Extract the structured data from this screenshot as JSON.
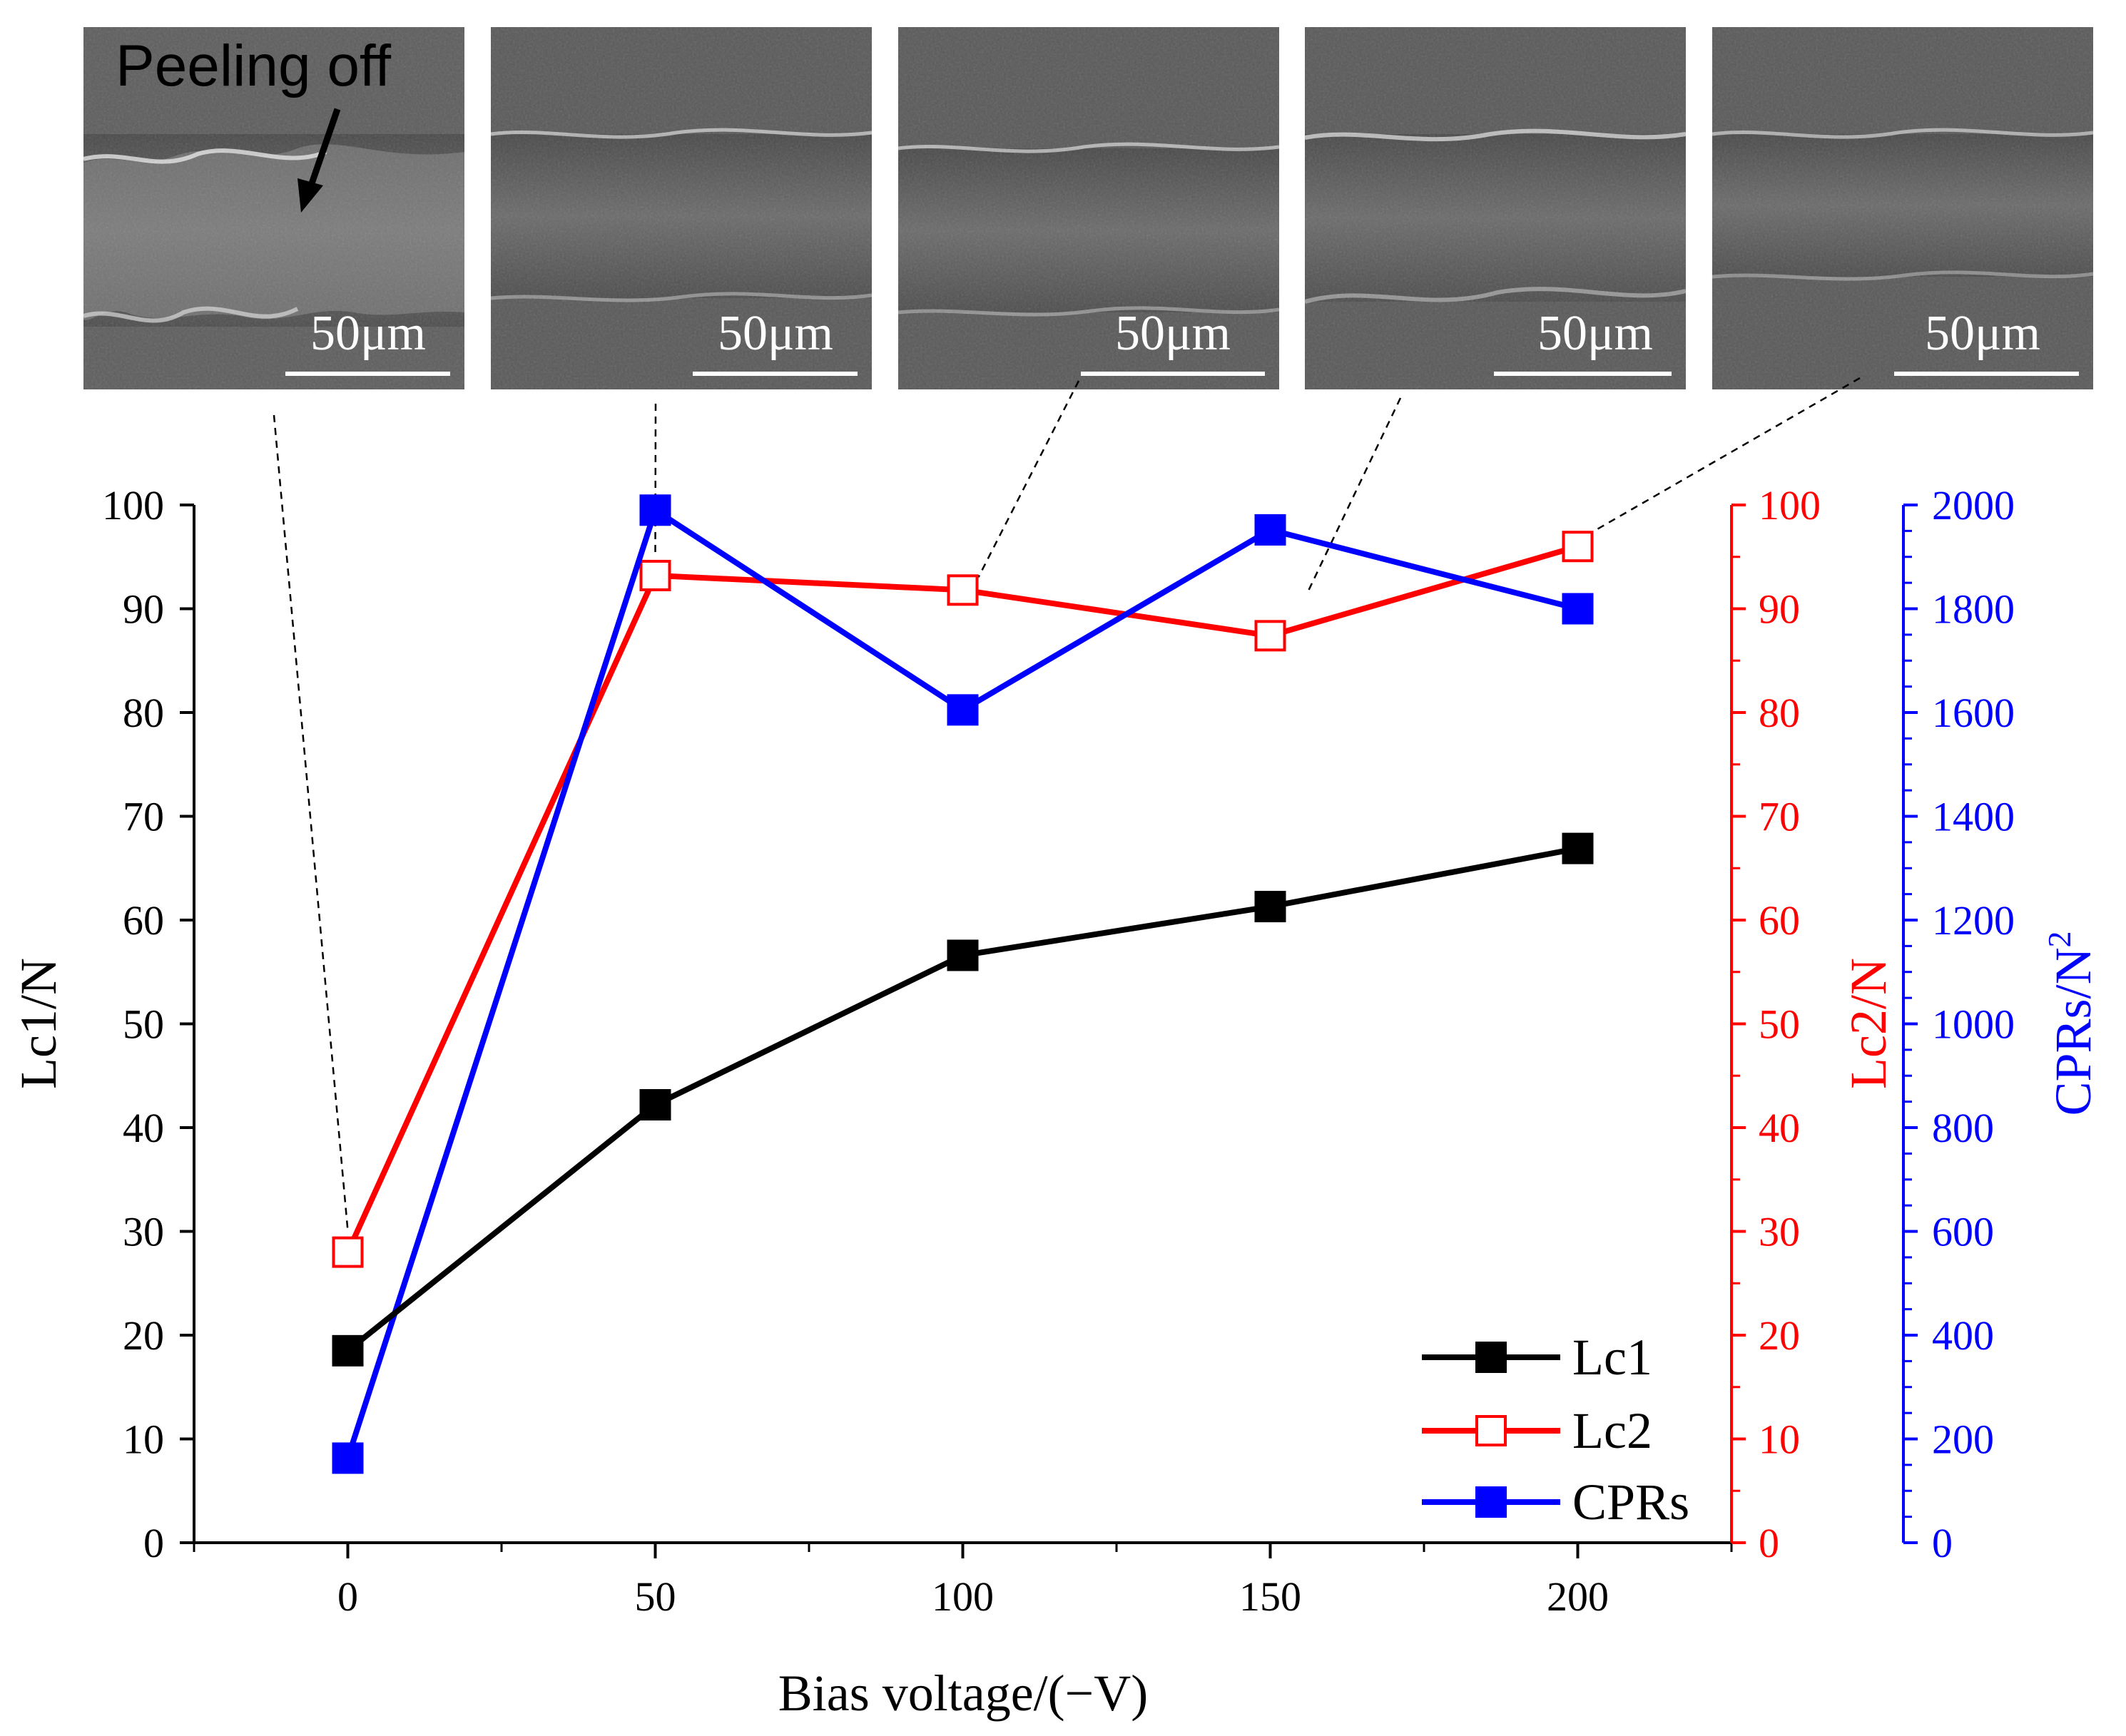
{
  "chart_data": {
    "type": "line",
    "title": "",
    "xlabel": "Bias voltage/(−V)",
    "ylabel_left": "Lc1/N",
    "ylabel_right": "Lc2/N",
    "ylabel_right2": "CPRs/N",
    "ylabel_right2_exponent": "2",
    "x": [
      0,
      50,
      100,
      150,
      200
    ],
    "x_ticks": [
      "0",
      "50",
      "100",
      "150",
      "200"
    ],
    "xlim": [
      -25,
      225
    ],
    "ylim_left": [
      0,
      100
    ],
    "ylim_right": [
      0,
      100
    ],
    "ylim_right2": [
      0,
      2000
    ],
    "yticks_left": [
      "0",
      "10",
      "20",
      "30",
      "40",
      "50",
      "60",
      "70",
      "80",
      "90",
      "100"
    ],
    "yticks_right": [
      "0",
      "10",
      "20",
      "30",
      "40",
      "50",
      "60",
      "70",
      "80",
      "90",
      "100"
    ],
    "yticks_right2": [
      "0",
      "200",
      "400",
      "600",
      "800",
      "1000",
      "1200",
      "1400",
      "1600",
      "1800",
      "2000"
    ],
    "series": [
      {
        "name": "Lc1",
        "axis": "left",
        "color": "#000000",
        "marker": "filled-square",
        "values": [
          18.5,
          42.2,
          56.6,
          61.3,
          66.9
        ]
      },
      {
        "name": "Lc2",
        "axis": "right",
        "color": "#ff0000",
        "marker": "open-square",
        "values": [
          28.0,
          93.2,
          91.8,
          87.4,
          96.0
        ]
      },
      {
        "name": "CPRs",
        "axis": "right2",
        "color": "#0000ff",
        "marker": "filled-square",
        "values": [
          163,
          1990,
          1605,
          1952,
          1800
        ]
      }
    ],
    "legend": {
      "position": "bottom-right",
      "entries": [
        "Lc1",
        "Lc2",
        "CPRs"
      ]
    },
    "annotations": [
      {
        "text": "Peeling off",
        "panel": 1
      }
    ],
    "sem_insets": [
      {
        "bias": "0",
        "scale_bar": "50μm"
      },
      {
        "bias": "50",
        "scale_bar": "50μm"
      },
      {
        "bias": "100",
        "scale_bar": "50μm"
      },
      {
        "bias": "150",
        "scale_bar": "50μm"
      },
      {
        "bias": "200",
        "scale_bar": "50μm"
      }
    ]
  }
}
